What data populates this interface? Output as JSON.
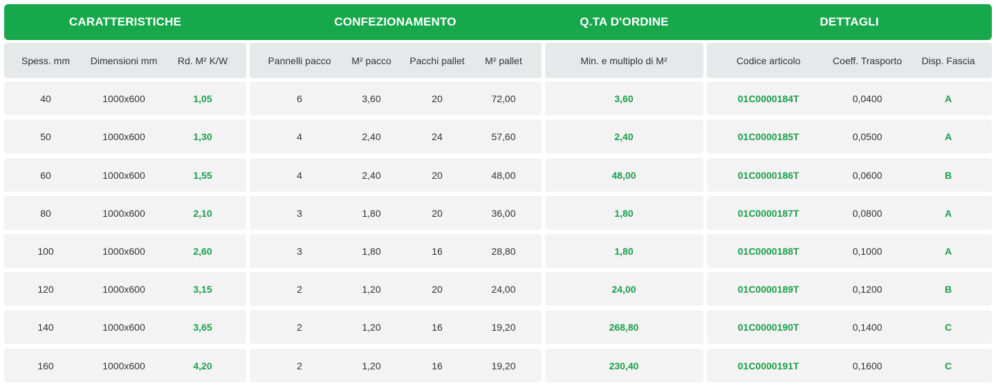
{
  "groups": [
    {
      "title": "CARATTERISTICHE",
      "columns": [
        "Spess. mm",
        "Dimensioni mm",
        "Rd. M² K/W"
      ]
    },
    {
      "title": "CONFEZIONAMENTO",
      "columns": [
        "Pannelli pacco",
        "M² pacco",
        "Pacchi pallet",
        "M² pallet"
      ]
    },
    {
      "title": "Q.TA D'ORDINE",
      "columns": [
        "Min. e multiplo di M²"
      ]
    },
    {
      "title": "DETTAGLI",
      "columns": [
        "Codice articolo",
        "Coeff. Trasporto",
        "Disp. Fascia"
      ]
    }
  ],
  "rows": [
    [
      "40",
      "1000x600",
      "1,05",
      "6",
      "3,60",
      "20",
      "72,00",
      "3,60",
      "01C0000184T",
      "0,0400",
      "A"
    ],
    [
      "50",
      "1000x600",
      "1,30",
      "4",
      "2,40",
      "24",
      "57,60",
      "2,40",
      "01C0000185T",
      "0,0500",
      "A"
    ],
    [
      "60",
      "1000x600",
      "1,55",
      "4",
      "2,40",
      "20",
      "48,00",
      "48,00",
      "01C0000186T",
      "0,0600",
      "B"
    ],
    [
      "80",
      "1000x600",
      "2,10",
      "3",
      "1,80",
      "20",
      "36,00",
      "1,80",
      "01C0000187T",
      "0,0800",
      "A"
    ],
    [
      "100",
      "1000x600",
      "2,60",
      "3",
      "1,80",
      "16",
      "28,80",
      "1,80",
      "01C0000188T",
      "0,1000",
      "A"
    ],
    [
      "120",
      "1000x600",
      "3,15",
      "2",
      "1,20",
      "20",
      "24,00",
      "24,00",
      "01C0000189T",
      "0,1200",
      "B"
    ],
    [
      "140",
      "1000x600",
      "3,65",
      "2",
      "1,20",
      "16",
      "19,20",
      "268,80",
      "01C0000190T",
      "0,1400",
      "C"
    ],
    [
      "160",
      "1000x600",
      "4,20",
      "2",
      "1,20",
      "16",
      "19,20",
      "230,40",
      "01C0000191T",
      "0,1600",
      "C"
    ]
  ],
  "colors": {
    "accent": "#17a84b",
    "highlight_text": "#1a9e48",
    "subheader_bg": "#e7e8ea",
    "row_bg": "#f3f3f4"
  }
}
